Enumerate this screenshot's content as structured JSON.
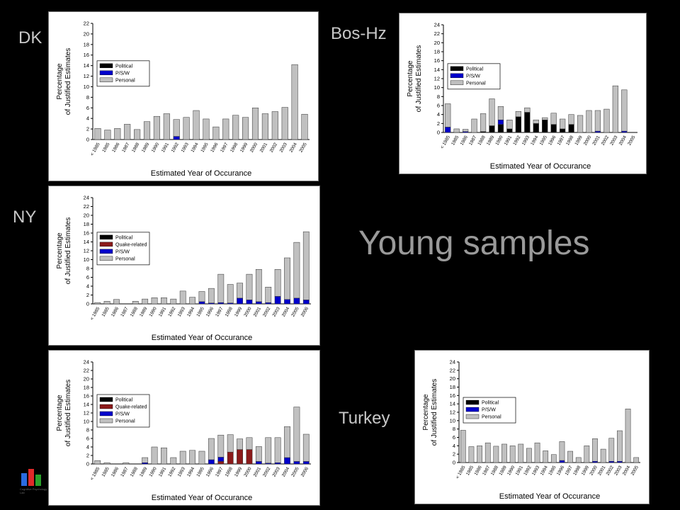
{
  "labels": {
    "dk": "DK",
    "bos": "Bos-Hz",
    "ny": "NY",
    "turkey": "Turkey",
    "title": "Young samples"
  },
  "colors": {
    "political": "#000000",
    "quake": "#8b1a1a",
    "psaw": "#0000cc",
    "personal": "#c0c0c0"
  },
  "logo": {
    "name": "lab-logo-icon",
    "caption": "Cognitive Psychology Lab"
  },
  "chart_data": [
    {
      "id": "dk",
      "type": "bar",
      "stacked": true,
      "xlabel": "Estimated Year of Occurance",
      "ylabel": [
        "Percentage",
        "of Justified Estimates"
      ],
      "ylim": [
        0,
        22
      ],
      "yticks": [
        0,
        2,
        4,
        6,
        8,
        10,
        12,
        14,
        16,
        18,
        20,
        22
      ],
      "categories": [
        "< 1985",
        "1985",
        "1986",
        "1987",
        "1988",
        "1989",
        "1990",
        "1991",
        "1992",
        "1993",
        "1994",
        "1995",
        "1996",
        "1997",
        "1998",
        "1999",
        "2000",
        "2001",
        "2002",
        "2003",
        "2004",
        "2005"
      ],
      "legend": [
        "Political",
        "P/S/W",
        "Personal"
      ],
      "series": [
        {
          "name": "Political",
          "values": [
            0,
            0,
            0,
            0,
            0,
            0,
            0,
            0,
            0,
            0,
            0,
            0,
            0,
            0,
            0,
            0,
            0,
            0,
            0,
            0,
            0,
            0
          ]
        },
        {
          "name": "P/S/W",
          "values": [
            0,
            0,
            0,
            0,
            0,
            0,
            0,
            0,
            0.6,
            0,
            0,
            0,
            0,
            0,
            0,
            0,
            0,
            0,
            0,
            0,
            0,
            0
          ]
        },
        {
          "name": "Personal",
          "values": [
            2.1,
            1.8,
            2.1,
            2.9,
            1.9,
            3.4,
            4.4,
            4.9,
            3.2,
            4.2,
            5.5,
            3.9,
            2.4,
            3.9,
            4.6,
            4.2,
            6.0,
            4.9,
            5.3,
            6.1,
            14.2,
            4.8
          ]
        }
      ]
    },
    {
      "id": "bos",
      "type": "bar",
      "stacked": true,
      "xlabel": "Estimated Year of Occurance",
      "ylabel": [
        "Percentage",
        "of Justified Estimates"
      ],
      "ylim": [
        0,
        24
      ],
      "yticks": [
        0,
        2,
        4,
        6,
        8,
        10,
        12,
        14,
        16,
        18,
        20,
        22,
        24
      ],
      "categories": [
        "< 1985",
        "1985",
        "1986",
        "1987",
        "1988",
        "1989",
        "1990",
        "1991",
        "1992",
        "1993",
        "1994",
        "1995",
        "1996",
        "1997",
        "1998",
        "1999",
        "2000",
        "2001",
        "2002",
        "2003",
        "2004",
        "2005"
      ],
      "legend": [
        "Political",
        "P/S/W",
        "Personal"
      ],
      "series": [
        {
          "name": "Political",
          "values": [
            0,
            0,
            0,
            0,
            0.2,
            1.5,
            1.8,
            0.8,
            3.5,
            4.5,
            2.0,
            2.8,
            1.8,
            0.8,
            1.8,
            0,
            0,
            0,
            0,
            0,
            0,
            0
          ]
        },
        {
          "name": "P/S/W",
          "values": [
            1.2,
            0,
            0.2,
            0,
            0,
            0,
            1.0,
            0,
            0,
            0,
            0,
            0,
            0,
            0,
            0,
            0,
            0,
            0.3,
            0,
            0,
            0.3,
            0
          ]
        },
        {
          "name": "Personal",
          "values": [
            5.2,
            0.8,
            0.5,
            3.0,
            4.0,
            6.0,
            3.0,
            2.0,
            1.2,
            1.0,
            0.8,
            0.5,
            2.5,
            2.2,
            2.2,
            3.8,
            4.9,
            4.6,
            5.2,
            10.4,
            9.2,
            0
          ]
        }
      ]
    },
    {
      "id": "ny",
      "type": "bar",
      "stacked": true,
      "xlabel": "Estimated Year of Occurance",
      "ylabel": [
        "Percentage",
        "of Justified Estimates"
      ],
      "ylim": [
        0,
        24
      ],
      "yticks": [
        0,
        2,
        4,
        6,
        8,
        10,
        12,
        14,
        16,
        18,
        20,
        22,
        24
      ],
      "categories": [
        "< 1985",
        "1985",
        "1986",
        "1987",
        "1988",
        "1989",
        "1990",
        "1991",
        "1992",
        "1993",
        "1994",
        "1995",
        "1996",
        "1997",
        "1998",
        "1999",
        "2000",
        "2001",
        "2002",
        "2003",
        "2004",
        "2005",
        "2006"
      ],
      "legend": [
        "Political",
        "Quake-related",
        "P/S/W",
        "Personal"
      ],
      "series": [
        {
          "name": "Political",
          "values": [
            0,
            0,
            0,
            0,
            0,
            0,
            0,
            0,
            0,
            0,
            0,
            0,
            0,
            0,
            0,
            0,
            0,
            0,
            0,
            0,
            0,
            0,
            0
          ]
        },
        {
          "name": "Quake-related",
          "values": [
            0,
            0,
            0,
            0,
            0,
            0,
            0,
            0,
            0,
            0,
            0,
            0,
            0,
            0,
            0,
            0,
            0,
            0,
            0,
            0,
            0,
            0,
            0
          ]
        },
        {
          "name": "P/S/W",
          "values": [
            0,
            0,
            0,
            0,
            0,
            0,
            0,
            0,
            0,
            0,
            0,
            0.5,
            0.2,
            0.3,
            0.2,
            1.3,
            0.9,
            0.5,
            0.3,
            1.7,
            1.0,
            1.3,
            0.9
          ]
        },
        {
          "name": "Personal",
          "values": [
            0.3,
            0.6,
            1.0,
            0,
            0.6,
            1.1,
            1.4,
            1.4,
            1.1,
            2.9,
            1.5,
            2.3,
            3.3,
            6.4,
            4.2,
            3.4,
            5.8,
            7.3,
            3.5,
            6.1,
            9.4,
            12.6,
            15.4
          ]
        }
      ]
    },
    {
      "id": "nyb",
      "type": "bar",
      "stacked": true,
      "xlabel": "Estimated Year of Occurance",
      "ylabel": [
        "Percentage",
        "of Justified Estimates"
      ],
      "ylim": [
        0,
        24
      ],
      "yticks": [
        0,
        2,
        4,
        6,
        8,
        10,
        12,
        14,
        16,
        18,
        20,
        22,
        24
      ],
      "categories": [
        "< 1985",
        "1985",
        "1986",
        "1987",
        "1988",
        "1989",
        "1990",
        "1991",
        "1992",
        "1993",
        "1994",
        "1995",
        "1996",
        "1997",
        "1998",
        "1999",
        "2000",
        "2001",
        "2002",
        "2003",
        "2004",
        "2005",
        "2006"
      ],
      "legend": [
        "Political",
        "Quake-related",
        "P/S/W",
        "Personal"
      ],
      "series": [
        {
          "name": "Political",
          "values": [
            0,
            0,
            0,
            0,
            0,
            0,
            0,
            0,
            0,
            0,
            0,
            0,
            0,
            0,
            0,
            0,
            0,
            0,
            0,
            0,
            0,
            0,
            0
          ]
        },
        {
          "name": "Quake-related",
          "values": [
            0,
            0,
            0,
            0,
            0,
            0,
            0,
            0,
            0,
            0,
            0,
            0,
            0,
            0.6,
            2.8,
            3.4,
            3.4,
            0,
            0,
            0,
            0,
            0,
            0
          ]
        },
        {
          "name": "P/S/W",
          "values": [
            0,
            0,
            0,
            0,
            0,
            0.3,
            0,
            0,
            0,
            0,
            0,
            0,
            1.0,
            1.0,
            0,
            0,
            0,
            0.6,
            0.2,
            0.3,
            1.5,
            0.6,
            0.6
          ]
        },
        {
          "name": "Personal",
          "values": [
            0.8,
            0.3,
            0,
            0.3,
            0,
            1.2,
            4.0,
            3.8,
            1.5,
            3.0,
            3.2,
            3.0,
            5.0,
            5.2,
            4.1,
            2.5,
            2.8,
            3.5,
            6.0,
            5.9,
            7.3,
            12.8,
            6.4
          ]
        }
      ]
    },
    {
      "id": "turkey",
      "type": "bar",
      "stacked": true,
      "xlabel": "Estimated Year of Occurance",
      "ylabel": [
        "Percentage",
        "of Justified Estimates"
      ],
      "ylim": [
        0,
        24
      ],
      "yticks": [
        0,
        2,
        4,
        6,
        8,
        10,
        12,
        14,
        16,
        18,
        20,
        22,
        24
      ],
      "categories": [
        "< 1985",
        "1985",
        "1986",
        "1987",
        "1988",
        "1989",
        "1990",
        "1991",
        "1992",
        "1993",
        "1994",
        "1995",
        "1996",
        "1997",
        "1998",
        "1999",
        "2000",
        "2001",
        "2002",
        "2003",
        "2004",
        "2005"
      ],
      "legend": [
        "Political",
        "P/S/W",
        "Personal"
      ],
      "series": [
        {
          "name": "Political",
          "values": [
            0,
            0,
            0,
            0,
            0,
            0,
            0,
            0,
            0,
            0,
            0,
            0,
            0,
            0,
            0,
            0,
            0,
            0,
            0,
            0,
            0,
            0
          ]
        },
        {
          "name": "P/S/W",
          "values": [
            0,
            0,
            0,
            0,
            0,
            0,
            0,
            0,
            0,
            0,
            0,
            0,
            0.5,
            0,
            0,
            0,
            0.3,
            0,
            0.3,
            0.3,
            0,
            0
          ]
        },
        {
          "name": "Personal",
          "values": [
            7.7,
            3.8,
            4.0,
            4.7,
            3.9,
            4.4,
            4.0,
            4.4,
            3.4,
            4.7,
            2.8,
            1.9,
            4.5,
            2.7,
            1.2,
            4.0,
            5.4,
            3.2,
            5.5,
            7.3,
            12.8,
            1.2
          ]
        }
      ]
    }
  ]
}
